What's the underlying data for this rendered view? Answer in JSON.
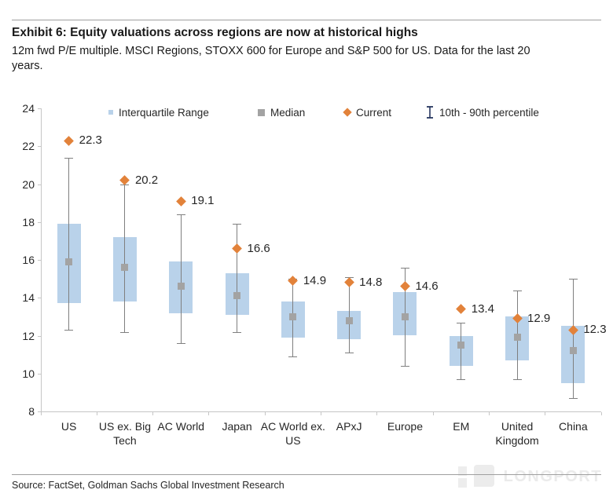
{
  "header": {
    "title": "Exhibit 6: Equity valuations across regions are now at historical highs",
    "subtitle": "12m fwd P/E multiple. MSCI Regions, STOXX 600 for Europe and S&P 500 for US. Data for the last 20 years."
  },
  "legend": {
    "iqr_label": "Interquartile Range",
    "median_label": "Median",
    "current_label": "Current",
    "percentile_label": "10th - 90th percentile"
  },
  "footer": {
    "source": "Source: FactSet, Goldman Sachs Global Investment Research"
  },
  "watermark": {
    "text": "LONGPORT"
  },
  "colors": {
    "box_fill": "#b9d2ea",
    "median": "#a3a3a3",
    "whisker": "#7f7f7f",
    "current": "#e2823a",
    "legend_whisker_icon": "#26365f",
    "axis": "#c6c6c6"
  },
  "chart_data": {
    "type": "boxplot",
    "title": "Exhibit 6: Equity valuations across regions are now at historical highs",
    "subtitle": "12m fwd P/E multiple. MSCI Regions, STOXX 600 for Europe and S&P 500 for US. Data for the last 20 years.",
    "xlabel": "",
    "ylabel": "12m fwd P/E multiple",
    "ylim": [
      8,
      24
    ],
    "y_ticks": [
      24,
      22,
      20,
      18,
      16,
      14,
      12,
      10,
      8
    ],
    "grid": false,
    "legend_position": "top",
    "legend_entries": [
      "Interquartile Range",
      "Median",
      "Current",
      "10th - 90th percentile"
    ],
    "regions": [
      {
        "category": "US",
        "p10": 12.3,
        "q1": 13.7,
        "median": 15.9,
        "q3": 17.9,
        "p90": 21.4,
        "current": 22.3
      },
      {
        "category": "US ex. Big Tech",
        "p10": 12.2,
        "q1": 13.8,
        "median": 15.6,
        "q3": 17.2,
        "p90": 20.0,
        "current": 20.2
      },
      {
        "category": "AC World",
        "p10": 11.6,
        "q1": 13.2,
        "median": 14.6,
        "q3": 15.9,
        "p90": 18.4,
        "current": 19.1
      },
      {
        "category": "Japan",
        "p10": 12.2,
        "q1": 13.1,
        "median": 14.1,
        "q3": 15.3,
        "p90": 17.9,
        "current": 16.6
      },
      {
        "category": "AC World ex. US",
        "p10": 10.9,
        "q1": 11.9,
        "median": 13.0,
        "q3": 13.8,
        "p90": 15.0,
        "current": 14.9
      },
      {
        "category": "APxJ",
        "p10": 11.1,
        "q1": 11.8,
        "median": 12.8,
        "q3": 13.3,
        "p90": 15.1,
        "current": 14.8
      },
      {
        "category": "Europe",
        "p10": 10.4,
        "q1": 12.0,
        "median": 13.0,
        "q3": 14.3,
        "p90": 15.6,
        "current": 14.6
      },
      {
        "category": "EM",
        "p10": 9.7,
        "q1": 10.4,
        "median": 11.5,
        "q3": 12.0,
        "p90": 12.7,
        "current": 13.4
      },
      {
        "category": "United Kingdom",
        "p10": 9.7,
        "q1": 10.7,
        "median": 11.9,
        "q3": 13.0,
        "p90": 14.4,
        "current": 12.9
      },
      {
        "category": "China",
        "p10": 8.7,
        "q1": 9.5,
        "median": 11.2,
        "q3": 12.5,
        "p90": 15.0,
        "current": 12.3
      }
    ]
  }
}
